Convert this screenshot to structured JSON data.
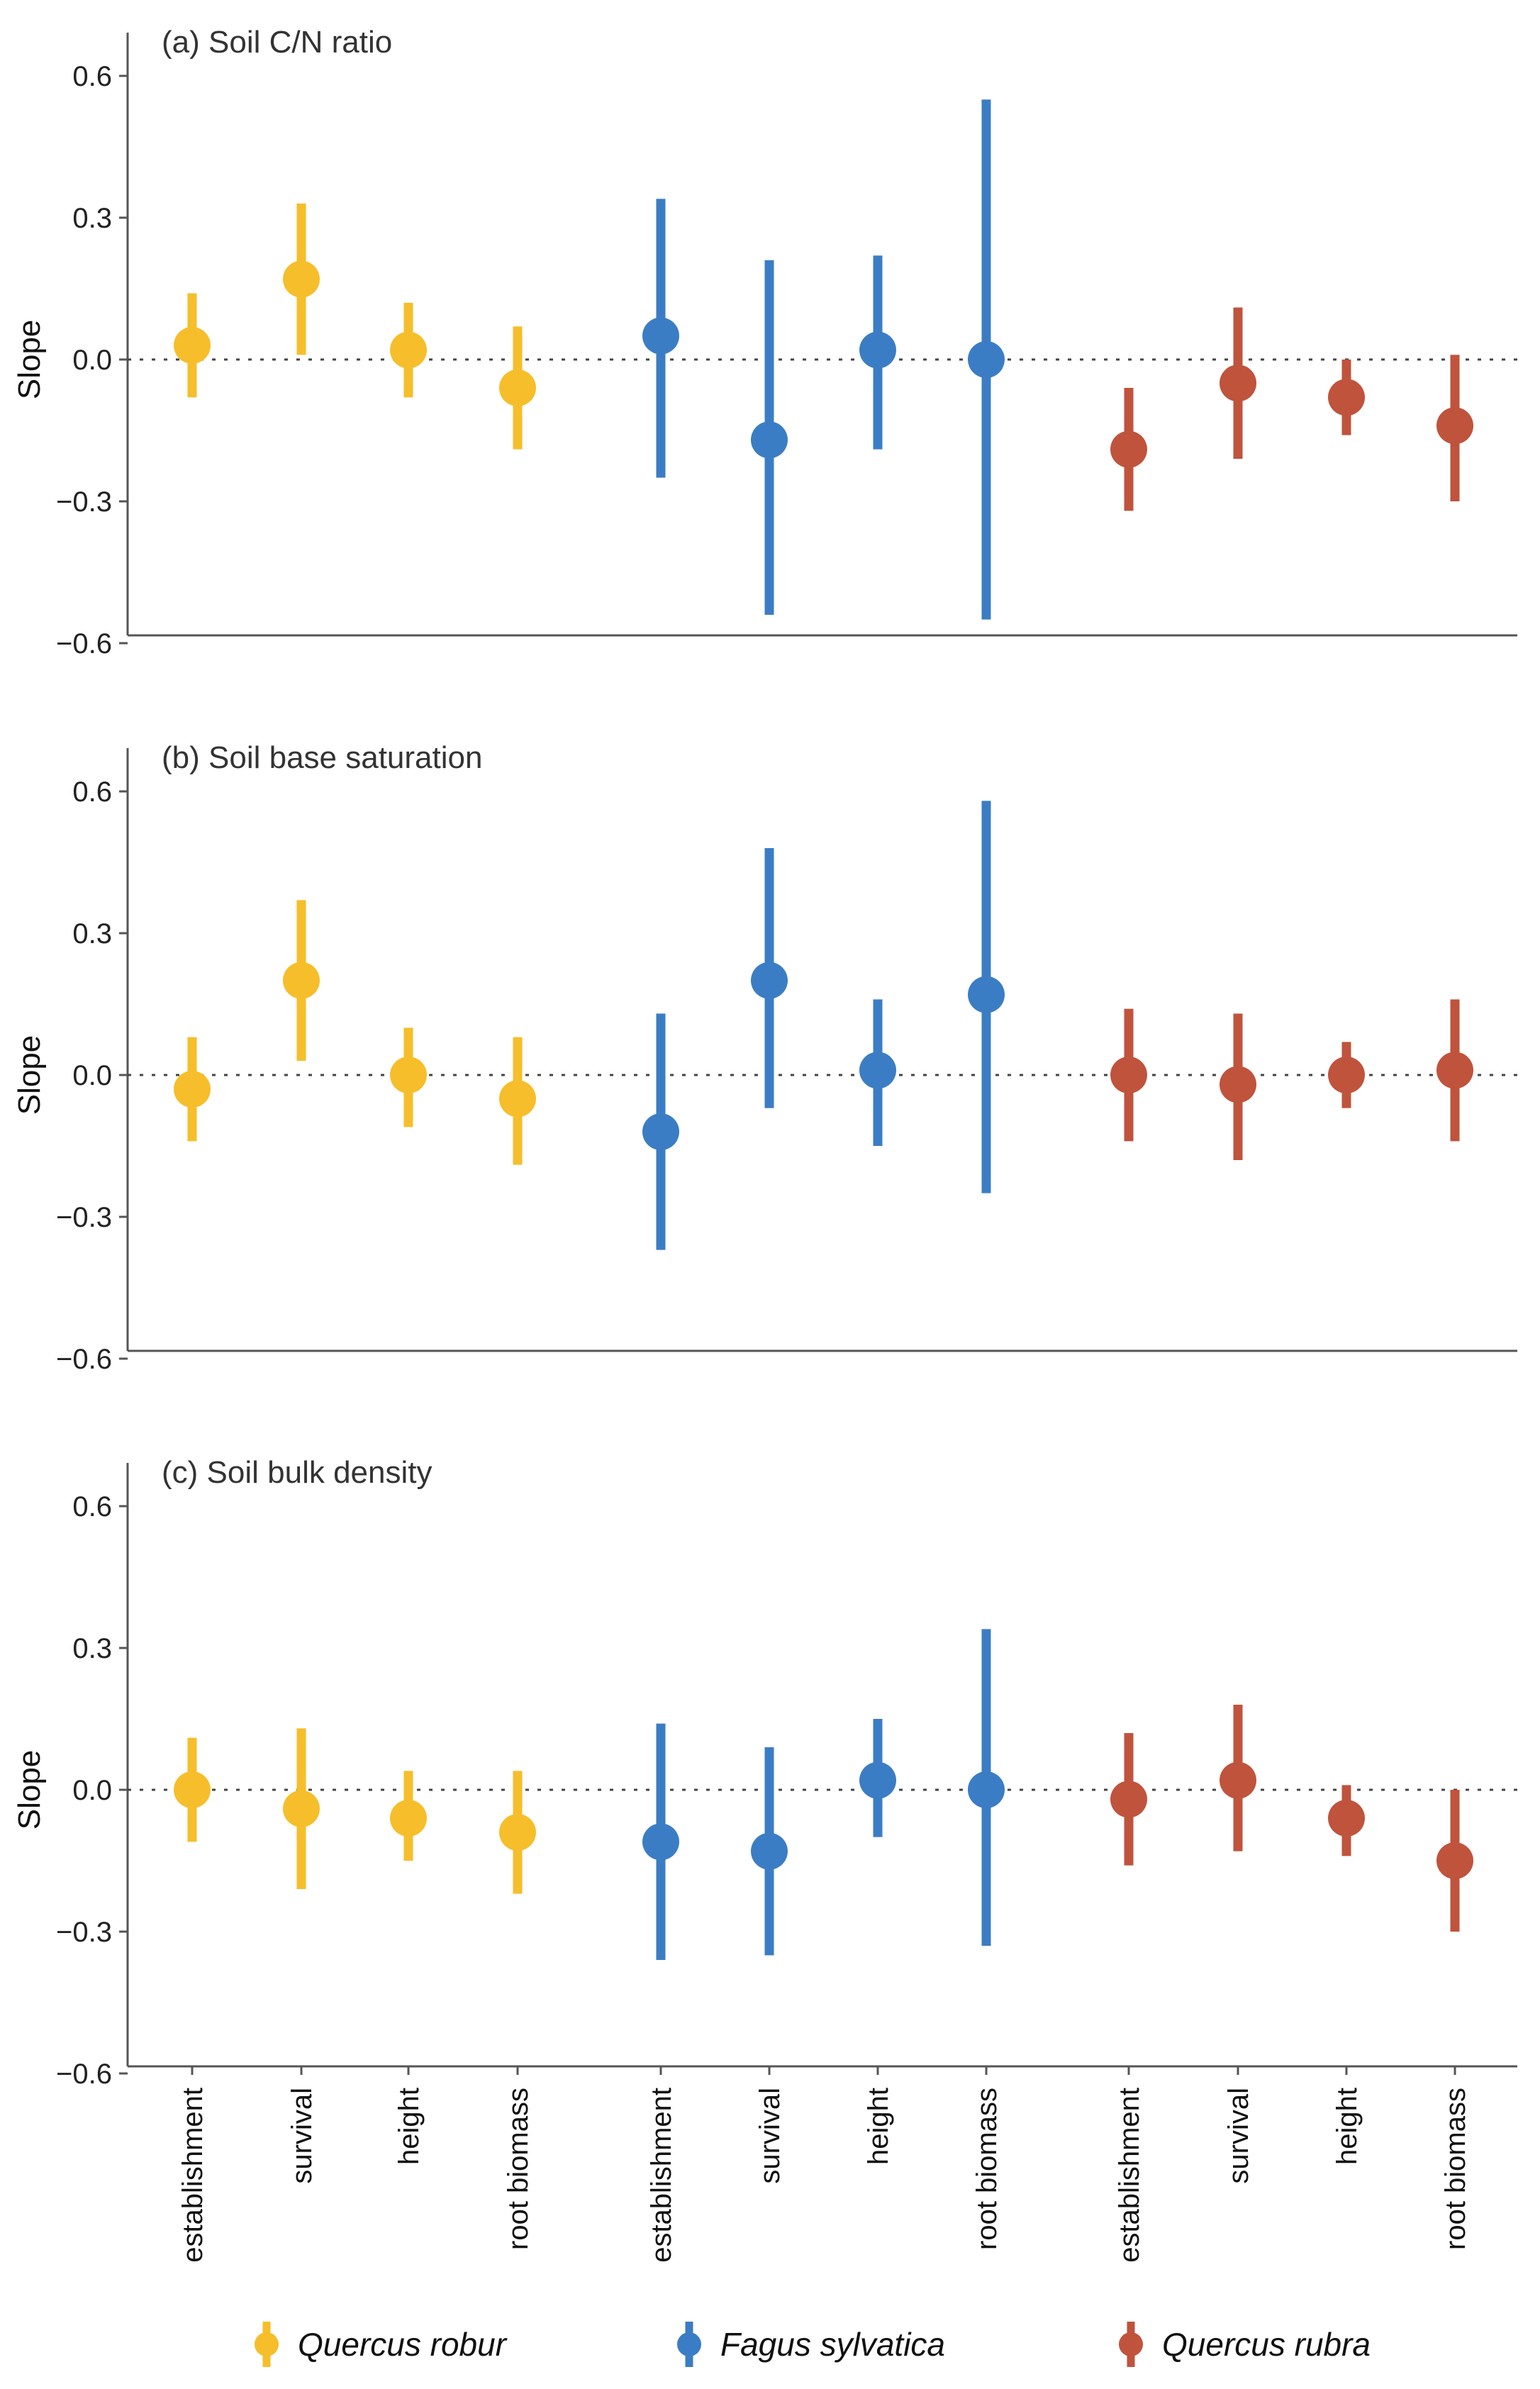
{
  "chart_data": [
    {
      "type": "errorbar",
      "title": "(a) Soil C/N ratio",
      "ylabel": "Slope",
      "ylim": [
        -0.66,
        0.62
      ],
      "yticks": [
        0.6,
        0.3,
        0.0,
        -0.3,
        -0.6
      ],
      "ytick_labels": [
        "0.6",
        "0.3",
        "0.0",
        "−0.3",
        "−0.6"
      ],
      "reference_line": 0,
      "categories": [
        "establishment",
        "survival",
        "height",
        "root biomass"
      ],
      "series": [
        {
          "name": "Quercus robur",
          "color": "#F6BE2A",
          "values": [
            0.03,
            0.17,
            0.02,
            -0.06
          ],
          "lower": [
            -0.08,
            0.01,
            -0.08,
            -0.19
          ],
          "upper": [
            0.14,
            0.33,
            0.12,
            0.07
          ]
        },
        {
          "name": "Fagus sylvatica",
          "color": "#3B7DC4",
          "values": [
            0.05,
            -0.17,
            0.02,
            0.0
          ],
          "lower": [
            -0.25,
            -0.54,
            -0.19,
            -0.55
          ],
          "upper": [
            0.34,
            0.21,
            0.22,
            0.55
          ]
        },
        {
          "name": "Quercus rubra",
          "color": "#C0533C",
          "values": [
            -0.19,
            -0.05,
            -0.08,
            -0.14
          ],
          "lower": [
            -0.32,
            -0.21,
            -0.16,
            -0.3
          ],
          "upper": [
            -0.06,
            0.11,
            0.0,
            0.01
          ]
        }
      ]
    },
    {
      "type": "errorbar",
      "title": "(b) Soil base saturation",
      "ylabel": "Slope",
      "ylim": [
        -0.66,
        0.62
      ],
      "yticks": [
        0.6,
        0.3,
        0.0,
        -0.3,
        -0.6
      ],
      "ytick_labels": [
        "0.6",
        "0.3",
        "0.0",
        "−0.3",
        "−0.6"
      ],
      "reference_line": 0,
      "categories": [
        "establishment",
        "survival",
        "height",
        "root biomass"
      ],
      "series": [
        {
          "name": "Quercus robur",
          "color": "#F6BE2A",
          "values": [
            -0.03,
            0.2,
            0.0,
            -0.05
          ],
          "lower": [
            -0.14,
            0.03,
            -0.11,
            -0.19
          ],
          "upper": [
            0.08,
            0.37,
            0.1,
            0.08
          ]
        },
        {
          "name": "Fagus sylvatica",
          "color": "#3B7DC4",
          "values": [
            -0.12,
            0.2,
            0.01,
            0.17
          ],
          "lower": [
            -0.37,
            -0.07,
            -0.15,
            -0.25
          ],
          "upper": [
            0.13,
            0.48,
            0.16,
            0.58
          ]
        },
        {
          "name": "Quercus rubra",
          "color": "#C0533C",
          "values": [
            0.0,
            -0.02,
            0.0,
            0.01
          ],
          "lower": [
            -0.14,
            -0.18,
            -0.07,
            -0.14
          ],
          "upper": [
            0.14,
            0.13,
            0.07,
            0.16
          ]
        }
      ]
    },
    {
      "type": "errorbar",
      "title": "(c) Soil bulk density",
      "ylabel": "Slope",
      "ylim": [
        -0.66,
        0.62
      ],
      "yticks": [
        0.6,
        0.3,
        0.0,
        -0.3,
        -0.6
      ],
      "ytick_labels": [
        "0.6",
        "0.3",
        "0.0",
        "−0.3",
        "−0.6"
      ],
      "reference_line": 0,
      "categories": [
        "establishment",
        "survival",
        "height",
        "root biomass"
      ],
      "series": [
        {
          "name": "Quercus robur",
          "color": "#F6BE2A",
          "values": [
            0.0,
            -0.04,
            -0.06,
            -0.09
          ],
          "lower": [
            -0.11,
            -0.21,
            -0.15,
            -0.22
          ],
          "upper": [
            0.11,
            0.13,
            0.04,
            0.04
          ]
        },
        {
          "name": "Fagus sylvatica",
          "color": "#3B7DC4",
          "values": [
            -0.11,
            -0.13,
            0.02,
            0.0
          ],
          "lower": [
            -0.36,
            -0.35,
            -0.1,
            -0.33
          ],
          "upper": [
            0.14,
            0.09,
            0.15,
            0.34
          ]
        },
        {
          "name": "Quercus rubra",
          "color": "#C0533C",
          "values": [
            -0.02,
            0.02,
            -0.06,
            -0.15
          ],
          "lower": [
            -0.16,
            -0.13,
            -0.14,
            -0.3
          ],
          "upper": [
            0.12,
            0.18,
            0.01,
            0.0
          ]
        }
      ]
    }
  ],
  "legend": {
    "placement": "bottom",
    "entries": [
      {
        "label": "Quercus robur",
        "color": "#F6BE2A"
      },
      {
        "label": "Fagus sylvatica",
        "color": "#3B7DC4"
      },
      {
        "label": "Quercus rubra",
        "color": "#C0533C"
      }
    ]
  }
}
